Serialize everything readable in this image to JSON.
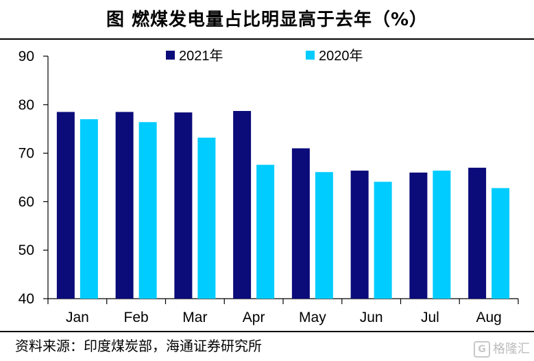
{
  "title": "图  燃煤发电量占比明显高于去年（%）",
  "source": "资料来源：印度煤炭部，海通证券研究所",
  "watermark": "格隆汇",
  "colors": {
    "series_2021": "#0b0b7a",
    "series_2020": "#00ccff"
  },
  "chart_data": {
    "type": "bar",
    "categories": [
      "Jan",
      "Feb",
      "Mar",
      "Apr",
      "May",
      "Jun",
      "Jul",
      "Aug"
    ],
    "series": [
      {
        "name": "2021年",
        "values": [
          78.5,
          78.5,
          78.4,
          78.7,
          71.0,
          66.4,
          66.0,
          67.0
        ]
      },
      {
        "name": "2020年",
        "values": [
          77.0,
          76.4,
          73.2,
          67.6,
          66.1,
          64.1,
          66.4,
          62.8
        ]
      }
    ],
    "ylim": [
      40,
      90
    ],
    "yticks": [
      40,
      50,
      60,
      70,
      80,
      90
    ],
    "legend": "top",
    "grid": false
  }
}
